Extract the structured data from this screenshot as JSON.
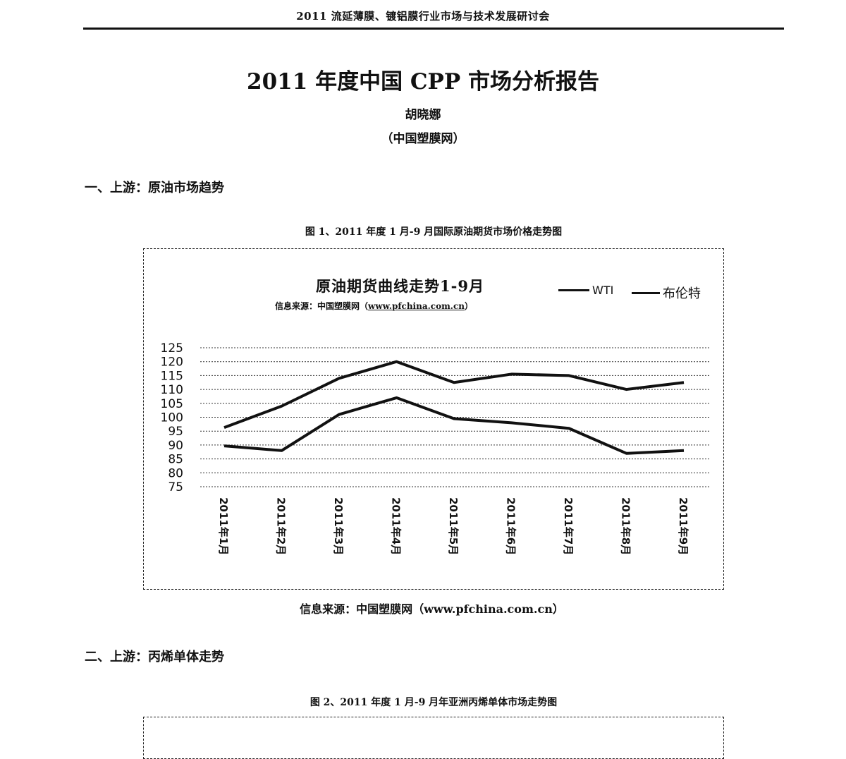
{
  "header": {
    "running_title": "2011 流延薄膜、镀铝膜行业市场与技术发展研讨会"
  },
  "document": {
    "title": "2011 年度中国 CPP 市场分析报告",
    "author": "胡晓娜",
    "affiliation": "（中国塑膜网）"
  },
  "sections": [
    {
      "heading": "一、上游：原油市场趋势",
      "figure_caption": "图 1、2011 年度 1 月-9 月国际原油期货市场价格走势图",
      "figure_source": "信息来源：中国塑膜网（www.pfchina.com.cn）"
    },
    {
      "heading": "二、上游：丙烯单体走势",
      "figure_caption": "图 2、2011 年度 1 月-9 月年亚洲丙烯单体市场走势图"
    }
  ],
  "chart": {
    "title": "原油期货曲线走势1-9月",
    "subtitle_prefix": "信息来源：中国塑膜网（",
    "subtitle_url": "www.pfchina.com.cn",
    "subtitle_suffix": "）",
    "legend": [
      {
        "label": "WTI"
      },
      {
        "label": "布伦特"
      }
    ]
  },
  "chart_data": {
    "type": "line",
    "title": "原油期货曲线走势1-9月",
    "subtitle": "信息来源：中国塑膜网（www.pfchina.com.cn）",
    "xlabel": "",
    "ylabel": "",
    "categories": [
      "2011年1月",
      "2011年2月",
      "2011年3月",
      "2011年4月",
      "2011年5月",
      "2011年6月",
      "2011年7月",
      "2011年8月",
      "2011年9月"
    ],
    "series": [
      {
        "name": "WTI",
        "values": [
          89.7,
          88,
          101,
          107,
          99.5,
          98,
          96,
          87,
          88
        ]
      },
      {
        "name": "布伦特",
        "values": [
          96.3,
          104,
          114,
          120,
          112.5,
          115.5,
          115,
          110,
          112.5
        ]
      }
    ],
    "yticks": [
      75,
      80,
      85,
      90,
      95,
      100,
      105,
      110,
      115,
      120,
      125
    ],
    "ylim": [
      75,
      125
    ],
    "grid": true,
    "legend_position": "top-right"
  }
}
